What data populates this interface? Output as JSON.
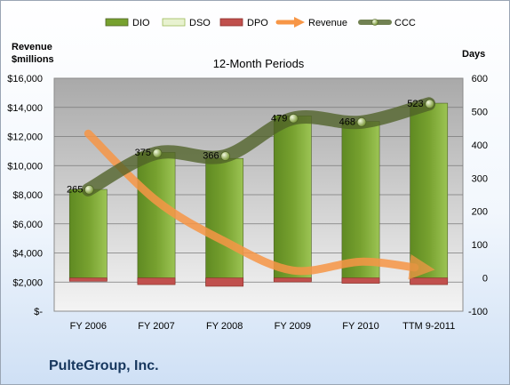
{
  "company": "PulteGroup, Inc.",
  "colors": {
    "dio": "#77a12f",
    "dso": "#e8f2d0",
    "dpo": "#c0504d",
    "revenue": "#f79646",
    "ccc": "#4f6228"
  },
  "chart_data": {
    "type": "bar",
    "title": "12-Month Periods",
    "left_axis_title": [
      "Revenue",
      "$millions"
    ],
    "right_axis_title": "Days",
    "categories": [
      "FY 2006",
      "FY 2007",
      "FY 2008",
      "FY 2009",
      "FY 2010",
      "TTM 9-2011"
    ],
    "left_ticks": [
      "$-",
      "$2,000",
      "$4,000",
      "$6,000",
      "$8,000",
      "$10,000",
      "$12,000",
      "$14,000",
      "$16,000"
    ],
    "right_ticks": [
      "-100",
      "0",
      "100",
      "200",
      "300",
      "400",
      "500",
      "600"
    ],
    "left_range": [
      0,
      16000
    ],
    "right_range": [
      -100,
      600
    ],
    "grid": true,
    "legend_position": "top",
    "series": [
      {
        "name": "DIO",
        "kind": "bar",
        "axis": "right",
        "values": [
          272,
          393,
          380,
          495,
          482,
          541
        ]
      },
      {
        "name": "DSO",
        "kind": "bar",
        "axis": "right",
        "values": [
          4,
          4,
          4,
          4,
          4,
          4
        ]
      },
      {
        "name": "DPO",
        "kind": "bar",
        "axis": "right",
        "values": [
          -10,
          -20,
          -25,
          -12,
          -16,
          -20
        ]
      },
      {
        "name": "Revenue",
        "kind": "line-arrow",
        "axis": "left",
        "values": [
          12200,
          7600,
          4800,
          2800,
          3400,
          3000
        ]
      },
      {
        "name": "CCC",
        "kind": "line",
        "axis": "right",
        "values": [
          265,
          375,
          366,
          479,
          468,
          523
        ],
        "labels": [
          "265",
          "375",
          "366",
          "479",
          "468",
          "523"
        ]
      }
    ]
  }
}
